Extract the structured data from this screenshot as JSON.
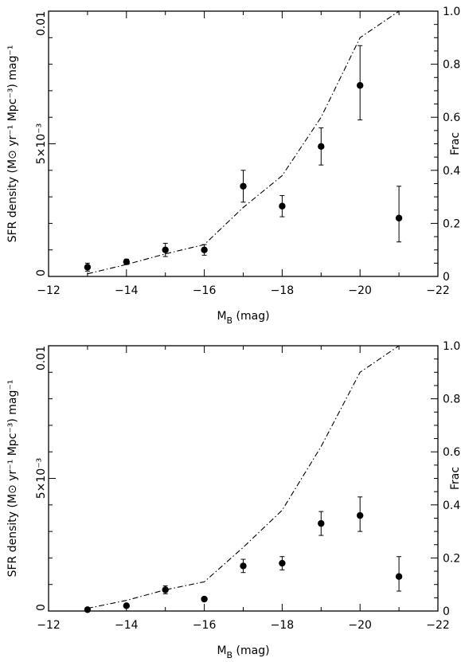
{
  "chart_data": [
    {
      "type": "scatter",
      "xlabel": "M_B (mag)",
      "xlabel_main": "M",
      "xlabel_sub": "B",
      "xlabel_rest": " (mag)",
      "ylabel_left": "SFR density (M⊙ yr⁻¹ Mpc⁻³) mag⁻¹",
      "ylabel_right": "Frac",
      "xlim": [
        -12,
        -22
      ],
      "ylim_left": [
        0,
        0.01
      ],
      "ylim_right": [
        0,
        1.0
      ],
      "x_ticks": [
        "-12",
        "-14",
        "-16",
        "-18",
        "-20",
        "-22"
      ],
      "y_left_ticks": [
        "0",
        "5×10⁻³",
        "0.01"
      ],
      "y_right_ticks": [
        "0",
        "0.2",
        "0.4",
        "0.6",
        "0.8",
        "1.0"
      ],
      "series": [
        {
          "style": "points-with-errorbars",
          "x": [
            -13,
            -14,
            -15,
            -16,
            -17,
            -18,
            -19,
            -20,
            -21
          ],
          "y": [
            0.00035,
            0.00055,
            0.001,
            0.001,
            0.0034,
            0.00265,
            0.0049,
            0.0072,
            0.0022
          ],
          "yerr_low": [
            0.00015,
            0.0001,
            0.00025,
            0.0002,
            0.0006,
            0.0004,
            0.0007,
            0.0013,
            0.0009
          ],
          "yerr_high": [
            0.00015,
            0.0001,
            0.00025,
            0.0002,
            0.0006,
            0.0004,
            0.0007,
            0.0015,
            0.0012
          ]
        },
        {
          "style": "dash-dot-line",
          "axis": "right",
          "x": [
            -13,
            -14,
            -15,
            -16,
            -17,
            -18,
            -19,
            -20,
            -21
          ],
          "y": [
            0.01,
            0.045,
            0.085,
            0.12,
            0.26,
            0.38,
            0.6,
            0.9,
            1.0
          ]
        }
      ]
    },
    {
      "type": "scatter",
      "xlabel": "M_B (mag)",
      "xlabel_main": "M",
      "xlabel_sub": "B",
      "xlabel_rest": " (mag)",
      "ylabel_left": "SFR density (M⊙ yr⁻¹ Mpc⁻³) mag⁻¹",
      "ylabel_right": "Frac",
      "xlim": [
        -12,
        -22
      ],
      "ylim_left": [
        0,
        0.01
      ],
      "ylim_right": [
        0,
        1.0
      ],
      "x_ticks": [
        "-12",
        "-14",
        "-16",
        "-18",
        "-20",
        "-22"
      ],
      "y_left_ticks": [
        "0",
        "5×10⁻³",
        "0.01"
      ],
      "y_right_ticks": [
        "0",
        "0.2",
        "0.4",
        "0.6",
        "0.8",
        "1.0"
      ],
      "series": [
        {
          "style": "points-with-errorbars",
          "x": [
            -13,
            -14,
            -15,
            -16,
            -17,
            -18,
            -19,
            -20,
            -21
          ],
          "y": [
            5e-05,
            0.0002,
            0.0008,
            0.00045,
            0.0017,
            0.0018,
            0.0033,
            0.0036,
            0.0013
          ],
          "yerr_low": [
            3e-05,
            5e-05,
            0.00015,
            5e-05,
            0.00025,
            0.00025,
            0.00045,
            0.0006,
            0.00055
          ],
          "yerr_high": [
            3e-05,
            5e-05,
            0.00015,
            5e-05,
            0.00025,
            0.00025,
            0.00045,
            0.0007,
            0.00075
          ]
        },
        {
          "style": "dash-dot-line",
          "axis": "right",
          "x": [
            -13,
            -14,
            -15,
            -16,
            -17,
            -18,
            -19,
            -20,
            -21
          ],
          "y": [
            0.01,
            0.04,
            0.08,
            0.11,
            0.24,
            0.38,
            0.62,
            0.9,
            1.0
          ]
        }
      ]
    }
  ]
}
